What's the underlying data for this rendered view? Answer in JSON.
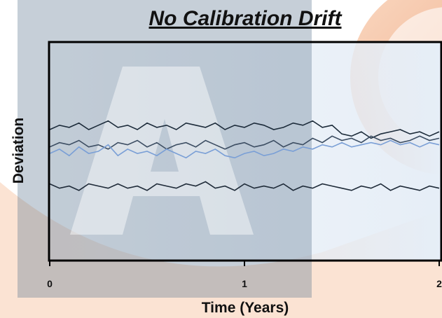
{
  "chart_data": {
    "type": "line",
    "title": "No Calibration Drift",
    "xlabel": "Time (Years)",
    "ylabel": "Deviation",
    "x": [
      0,
      0.05,
      0.1,
      0.15,
      0.2,
      0.25,
      0.3,
      0.35,
      0.4,
      0.45,
      0.5,
      0.55,
      0.6,
      0.65,
      0.7,
      0.75,
      0.8,
      0.85,
      0.9,
      0.95,
      1,
      1.05,
      1.1,
      1.15,
      1.2,
      1.25,
      1.3,
      1.35,
      1.4,
      1.45,
      1.5,
      1.55,
      1.6,
      1.65,
      1.7,
      1.75,
      1.8,
      1.85,
      1.9,
      1.95,
      2
    ],
    "series": [
      {
        "color": "#1c2b3a",
        "values": [
          6.0,
          6.2,
          6.1,
          6.3,
          6.0,
          6.2,
          6.4,
          6.1,
          6.2,
          6.0,
          6.3,
          6.1,
          6.2,
          6.0,
          6.3,
          6.2,
          6.1,
          6.3,
          6.0,
          6.2,
          6.1,
          6.3,
          6.2,
          6.0,
          6.1,
          6.3,
          6.2,
          6.4,
          6.1,
          6.2,
          5.8,
          5.7,
          5.9,
          5.6,
          5.8,
          5.9,
          6.0,
          5.8,
          5.9,
          5.7,
          5.9
        ]
      },
      {
        "color": "#3c4d62",
        "values": [
          5.2,
          5.4,
          5.3,
          5.5,
          5.2,
          5.3,
          5.1,
          5.4,
          5.3,
          5.5,
          5.2,
          5.4,
          5.1,
          5.3,
          5.4,
          5.2,
          5.5,
          5.3,
          5.1,
          5.3,
          5.4,
          5.2,
          5.3,
          5.5,
          5.2,
          5.4,
          5.3,
          5.6,
          5.4,
          5.7,
          5.5,
          5.6,
          5.4,
          5.7,
          5.5,
          5.6,
          5.4,
          5.5,
          5.7,
          5.5,
          5.6
        ]
      },
      {
        "color": "#7a9fd6",
        "values": [
          4.9,
          5.1,
          4.8,
          5.2,
          4.9,
          5.0,
          5.3,
          4.8,
          5.1,
          4.9,
          5.0,
          4.8,
          5.1,
          4.9,
          4.7,
          5.0,
          4.9,
          5.1,
          4.8,
          4.7,
          4.9,
          5.0,
          4.8,
          4.9,
          5.1,
          5.0,
          5.2,
          5.1,
          5.3,
          5.2,
          5.4,
          5.2,
          5.3,
          5.4,
          5.3,
          5.5,
          5.3,
          5.4,
          5.2,
          5.4,
          5.3
        ]
      },
      {
        "color": "#1e2a38",
        "values": [
          3.5,
          3.3,
          3.4,
          3.2,
          3.5,
          3.4,
          3.3,
          3.5,
          3.3,
          3.4,
          3.2,
          3.5,
          3.4,
          3.3,
          3.5,
          3.4,
          3.6,
          3.3,
          3.4,
          3.2,
          3.5,
          3.3,
          3.4,
          3.3,
          3.5,
          3.2,
          3.4,
          3.3,
          3.5,
          3.4,
          3.3,
          3.2,
          3.4,
          3.3,
          3.5,
          3.2,
          3.4,
          3.3,
          3.2,
          3.4,
          3.3
        ]
      }
    ],
    "xlim": [
      0,
      2
    ],
    "xticks": [
      0,
      1,
      2
    ],
    "ylim": [
      0,
      10
    ]
  }
}
